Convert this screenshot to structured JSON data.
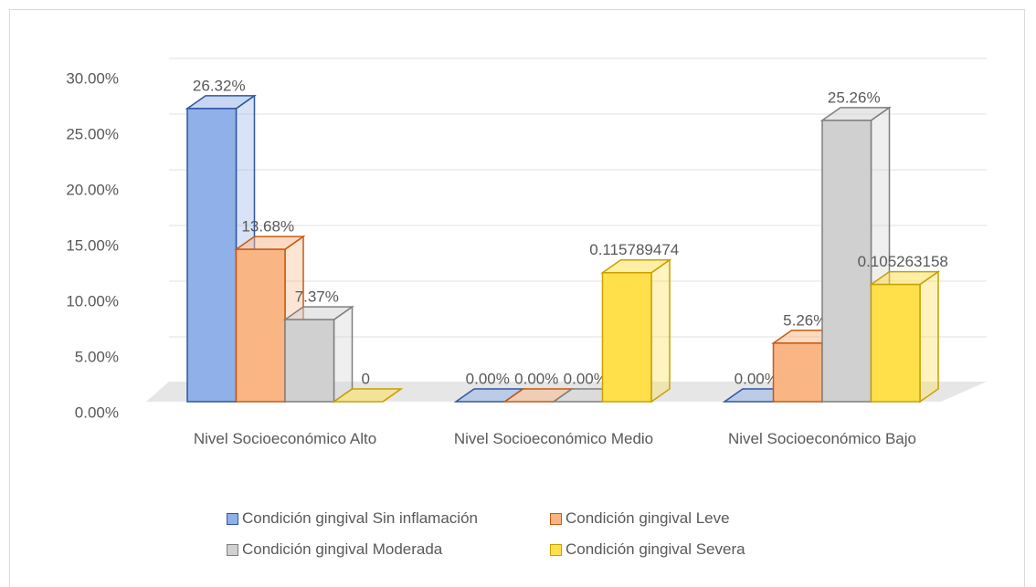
{
  "chart_data": {
    "type": "bar3d",
    "categories": [
      "Nivel Socioeconómico Alto",
      "Nivel Socioeconómico Medio",
      "Nivel Socioeconómico Bajo"
    ],
    "series": [
      {
        "name": "Condición gingival Sin inflamación",
        "color": "#8fb0e8",
        "values": [
          26.32,
          0,
          0
        ],
        "value_labels": [
          "26.32%",
          "0.00%",
          "0.00%"
        ]
      },
      {
        "name": "Condición gingival Leve",
        "color": "#f9b584",
        "values": [
          13.68,
          0,
          5.26
        ],
        "value_labels": [
          "13.68%",
          "0.00%",
          "5.26%"
        ]
      },
      {
        "name": "Condición gingival Moderada",
        "color": "#d0d0d0",
        "values": [
          7.37,
          0,
          25.26
        ],
        "value_labels": [
          "7.37%",
          "0.00%",
          "25.26%"
        ]
      },
      {
        "name": "Condición gingival Severa",
        "color": "#ffe04b",
        "values": [
          0,
          11.5789474,
          10.5263158
        ],
        "value_labels": [
          "0",
          "0.115789474",
          "0.105263158"
        ]
      }
    ],
    "ylim": [
      0,
      30
    ],
    "yticks": [
      {
        "value": 0,
        "label": "0.00%"
      },
      {
        "value": 5,
        "label": "5.00%"
      },
      {
        "value": 10,
        "label": "10.00%"
      },
      {
        "value": 15,
        "label": "15.00%"
      },
      {
        "value": 20,
        "label": "20.00%"
      },
      {
        "value": 25,
        "label": "25.00%"
      },
      {
        "value": 30,
        "label": "30.00%"
      }
    ],
    "grid": true,
    "legend": "bottom"
  }
}
